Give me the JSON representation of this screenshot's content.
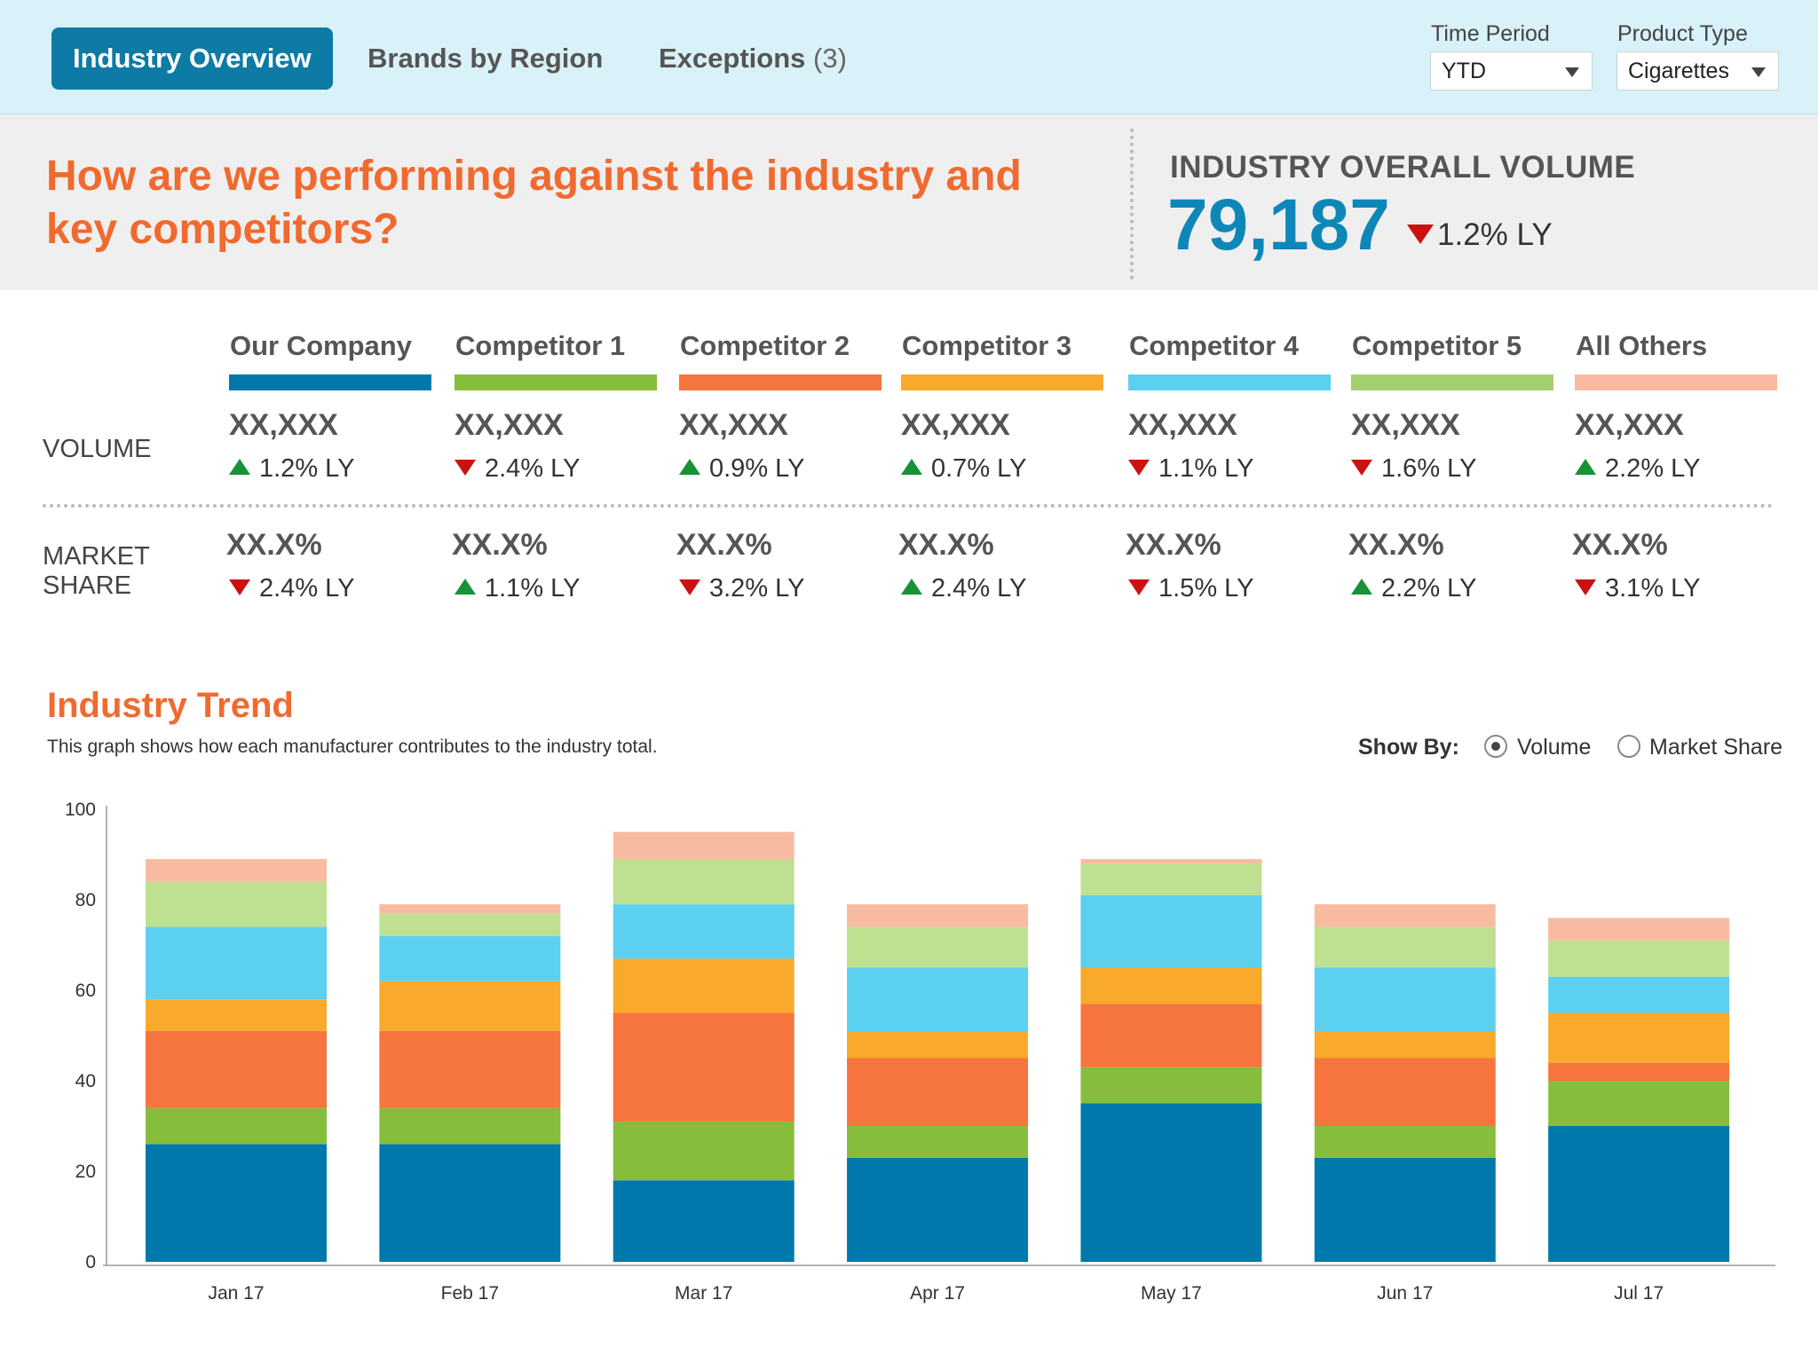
{
  "nav": {
    "tabs": [
      {
        "label": "Industry Overview",
        "active": true
      },
      {
        "label": "Brands by Region",
        "active": false
      },
      {
        "label": "Exceptions",
        "count": "(3)",
        "active": false
      }
    ]
  },
  "filters": {
    "time_period": {
      "label": "Time Period",
      "value": "YTD"
    },
    "product_type": {
      "label": "Product Type",
      "value": "Cigarettes"
    }
  },
  "header": {
    "question": "How are we performing against the industry and key competitors?",
    "industry_label": "INDUSTRY OVERALL VOLUME",
    "industry_value": "79,187",
    "industry_change": "1.2% LY",
    "industry_change_dir": "down"
  },
  "colors": {
    "accent": "#0e7aa6",
    "headline": "#f06a2f",
    "up": "#179236",
    "down": "#cc1111"
  },
  "grid": {
    "rows": {
      "volume": "VOLUME",
      "share": "MARKET SHARE"
    },
    "columns": [
      {
        "name": "Our Company",
        "color": "#0178ab",
        "volume": "XX,XXX",
        "volume_change": "1.2% LY",
        "volume_dir": "up",
        "share": "XX.X%",
        "share_change": "2.4% LY",
        "share_dir": "down"
      },
      {
        "name": "Competitor 1",
        "color": "#86bd3c",
        "volume": "XX,XXX",
        "volume_change": "2.4% LY",
        "volume_dir": "down",
        "share": "XX.X%",
        "share_change": "1.1% LY",
        "share_dir": "up"
      },
      {
        "name": "Competitor 2",
        "color": "#f6743d",
        "volume": "XX,XXX",
        "volume_change": "0.9% LY",
        "volume_dir": "up",
        "share": "XX.X%",
        "share_change": "3.2% LY",
        "share_dir": "down"
      },
      {
        "name": "Competitor 3",
        "color": "#f9a92c",
        "volume": "XX,XXX",
        "volume_change": "0.7% LY",
        "volume_dir": "up",
        "share": "XX.X%",
        "share_change": "2.4% LY",
        "share_dir": "up"
      },
      {
        "name": "Competitor 4",
        "color": "#5bd0f0",
        "volume": "XX,XXX",
        "volume_change": "1.1% LY",
        "volume_dir": "down",
        "share": "XX.X%",
        "share_change": "1.5% LY",
        "share_dir": "down"
      },
      {
        "name": "Competitor 5",
        "color": "#a4d070",
        "volume": "XX,XXX",
        "volume_change": "1.6% LY",
        "volume_dir": "down",
        "share": "XX.X%",
        "share_change": "2.2% LY",
        "share_dir": "up"
      },
      {
        "name": "All Others",
        "color": "#f8bba2",
        "volume": "XX,XXX",
        "volume_change": "2.2% LY",
        "volume_dir": "up",
        "share": "XX.X%",
        "share_change": "3.1% LY",
        "share_dir": "down"
      }
    ]
  },
  "trend": {
    "title": "Industry Trend",
    "subtitle": "This graph shows how each manufacturer contributes to the industry total.",
    "show_by_label": "Show By:",
    "options": [
      {
        "label": "Volume",
        "selected": true
      },
      {
        "label": "Market Share",
        "selected": false
      }
    ]
  },
  "chart_data": {
    "type": "bar",
    "stacked": true,
    "categories": [
      "Jan 17",
      "Feb 17",
      "Mar 17",
      "Apr 17",
      "May 17",
      "Jun 17",
      "Jul 17"
    ],
    "ylim": [
      0,
      100
    ],
    "yticks": [
      0,
      20,
      40,
      60,
      80,
      100
    ],
    "grid": false,
    "series": [
      {
        "name": "Our Company",
        "color": "#0178ab",
        "values": [
          26,
          26,
          18,
          23,
          35,
          23,
          30
        ]
      },
      {
        "name": "Competitor 1",
        "color": "#86bd3c",
        "values": [
          8,
          8,
          13,
          7,
          8,
          7,
          10
        ]
      },
      {
        "name": "Competitor 2",
        "color": "#f6743d",
        "values": [
          17,
          17,
          24,
          15,
          14,
          15,
          4
        ]
      },
      {
        "name": "Competitor 3",
        "color": "#f9a92c",
        "values": [
          7,
          11,
          12,
          6,
          8,
          6,
          11
        ]
      },
      {
        "name": "Competitor 4",
        "color": "#5bd0f0",
        "values": [
          16,
          10,
          12,
          14,
          16,
          14,
          8
        ]
      },
      {
        "name": "Competitor 5",
        "color": "#bfe090",
        "values": [
          10,
          5,
          10,
          9,
          7,
          9,
          8
        ]
      },
      {
        "name": "All Others",
        "color": "#f8bba2",
        "values": [
          5,
          2,
          6,
          5,
          1,
          5,
          5
        ]
      }
    ]
  }
}
